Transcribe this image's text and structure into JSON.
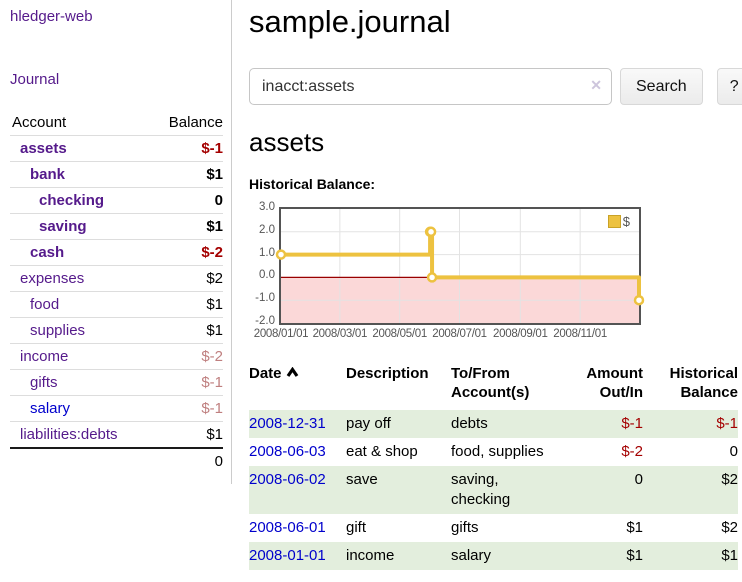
{
  "colors": {
    "link_purple": "#551a8b",
    "link_blue": "#0000cc",
    "negative_strong": "#a40000",
    "negative_soft": "#bf7f7f",
    "row_green": "#e3eedd",
    "chart_gold": "#edc240",
    "chart_negative_fill": "#fbd8d8",
    "chart_zero_line": "#990000"
  },
  "sidebar": {
    "app_title": "hledger-web",
    "journal_label": "Journal",
    "accounts_table": {
      "headers": {
        "account": "Account",
        "balance": "Balance"
      },
      "rows": [
        {
          "name": "assets",
          "balance": "$-1"
        },
        {
          "name": "bank",
          "balance": "$1"
        },
        {
          "name": "checking",
          "balance": "0"
        },
        {
          "name": "saving",
          "balance": "$1"
        },
        {
          "name": "cash",
          "balance": "$-2"
        },
        {
          "name": "expenses",
          "balance": "$2"
        },
        {
          "name": "food",
          "balance": "$1"
        },
        {
          "name": "supplies",
          "balance": "$1"
        },
        {
          "name": "income",
          "balance": "$-2"
        },
        {
          "name": "gifts",
          "balance": "$-1"
        },
        {
          "name": "salary",
          "balance": "$-1"
        },
        {
          "name": "liabilities:debts",
          "balance": "$1"
        }
      ],
      "total": "0"
    }
  },
  "main": {
    "title": "sample.journal",
    "search": {
      "query": "inacct:assets",
      "clear_icon": "✕",
      "button_label": "Search",
      "help_label": "?"
    },
    "account_heading": "assets",
    "chart_heading": "Historical Balance:"
  },
  "chart_data": {
    "type": "line",
    "step": true,
    "title": "Historical Balance:",
    "legend_label": "$",
    "legend_position": "top-right",
    "series": [
      {
        "name": "$",
        "x": [
          "2008-01-01",
          "2008-06-01",
          "2008-06-02",
          "2008-06-03",
          "2008-12-31"
        ],
        "y": [
          1,
          2,
          2,
          0,
          -1
        ]
      }
    ],
    "point_days": [
      0,
      152,
      153,
      154,
      365
    ],
    "x_range_days": [
      0,
      365
    ],
    "ylim": [
      -2,
      3
    ],
    "ytick_values": [
      3,
      2,
      1,
      0,
      -1,
      -2
    ],
    "yticks": [
      "3.0",
      "2.0",
      "1.0",
      "0.0",
      "-1.0",
      "-2.0"
    ],
    "xticks": [
      "2008/01/01",
      "2008/03/01",
      "2008/05/01",
      "2008/07/01",
      "2008/09/01",
      "2008/11/01"
    ],
    "xtick_days": [
      0,
      60,
      121,
      182,
      244,
      305
    ],
    "grid": true,
    "series_color": "#edc240",
    "negative_fill": "#fbd8d8",
    "zero_line_color": "#990000"
  },
  "register": {
    "headers": {
      "date": "Date",
      "description": "Description",
      "accounts": "To/From\nAccount(s)",
      "amount": "Amount\nOut/In",
      "balance": "Historical\nBalance"
    },
    "rows": [
      {
        "date": "2008-12-31",
        "description": "pay off",
        "accounts": "debts",
        "amount": "$-1",
        "balance": "$-1"
      },
      {
        "date": "2008-06-03",
        "description": "eat & shop",
        "accounts": "food, supplies",
        "amount": "$-2",
        "balance": "0"
      },
      {
        "date": "2008-06-02",
        "description": "save",
        "accounts": "saving, checking",
        "amount": "0",
        "balance": "$2"
      },
      {
        "date": "2008-06-01",
        "description": "gift",
        "accounts": "gifts",
        "amount": "$1",
        "balance": "$2"
      },
      {
        "date": "2008-01-01",
        "description": "income",
        "accounts": "salary",
        "amount": "$1",
        "balance": "$1"
      }
    ]
  }
}
